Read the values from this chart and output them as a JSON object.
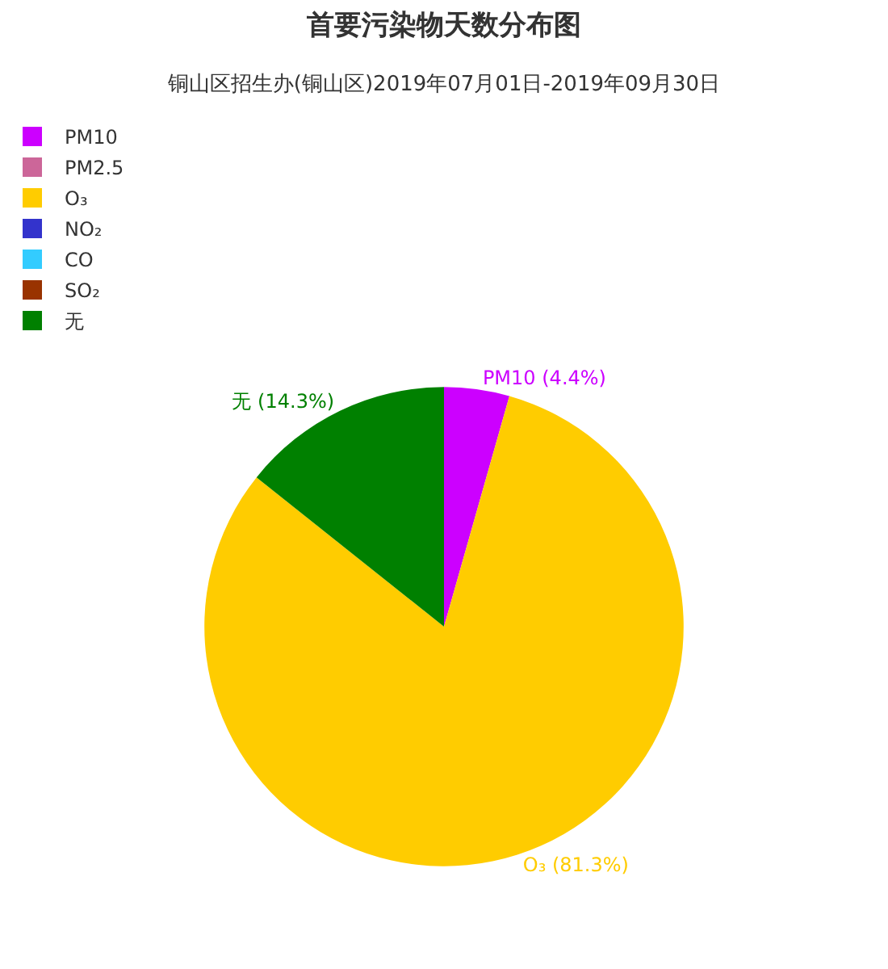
{
  "chart_data": {
    "type": "pie",
    "title": "首要污染物天数分布图",
    "subtitle": "铜山区招生办(铜山区)2019年07月01日-2019年09月30日",
    "categories": [
      "PM10",
      "PM2.5",
      "O₃",
      "NO₂",
      "CO",
      "SO₂",
      "无"
    ],
    "values": [
      4.4,
      0,
      81.3,
      0,
      0,
      0,
      14.3
    ],
    "colors": [
      "#cc00ff",
      "#cc6699",
      "#ffcc00",
      "#3333cc",
      "#33ccff",
      "#993300",
      "#008000"
    ],
    "value_labels": [
      "PM10 (4.4%)",
      null,
      "O₃ (81.3%)",
      null,
      null,
      null,
      "无 (14.3%)"
    ],
    "legend": "top left"
  }
}
